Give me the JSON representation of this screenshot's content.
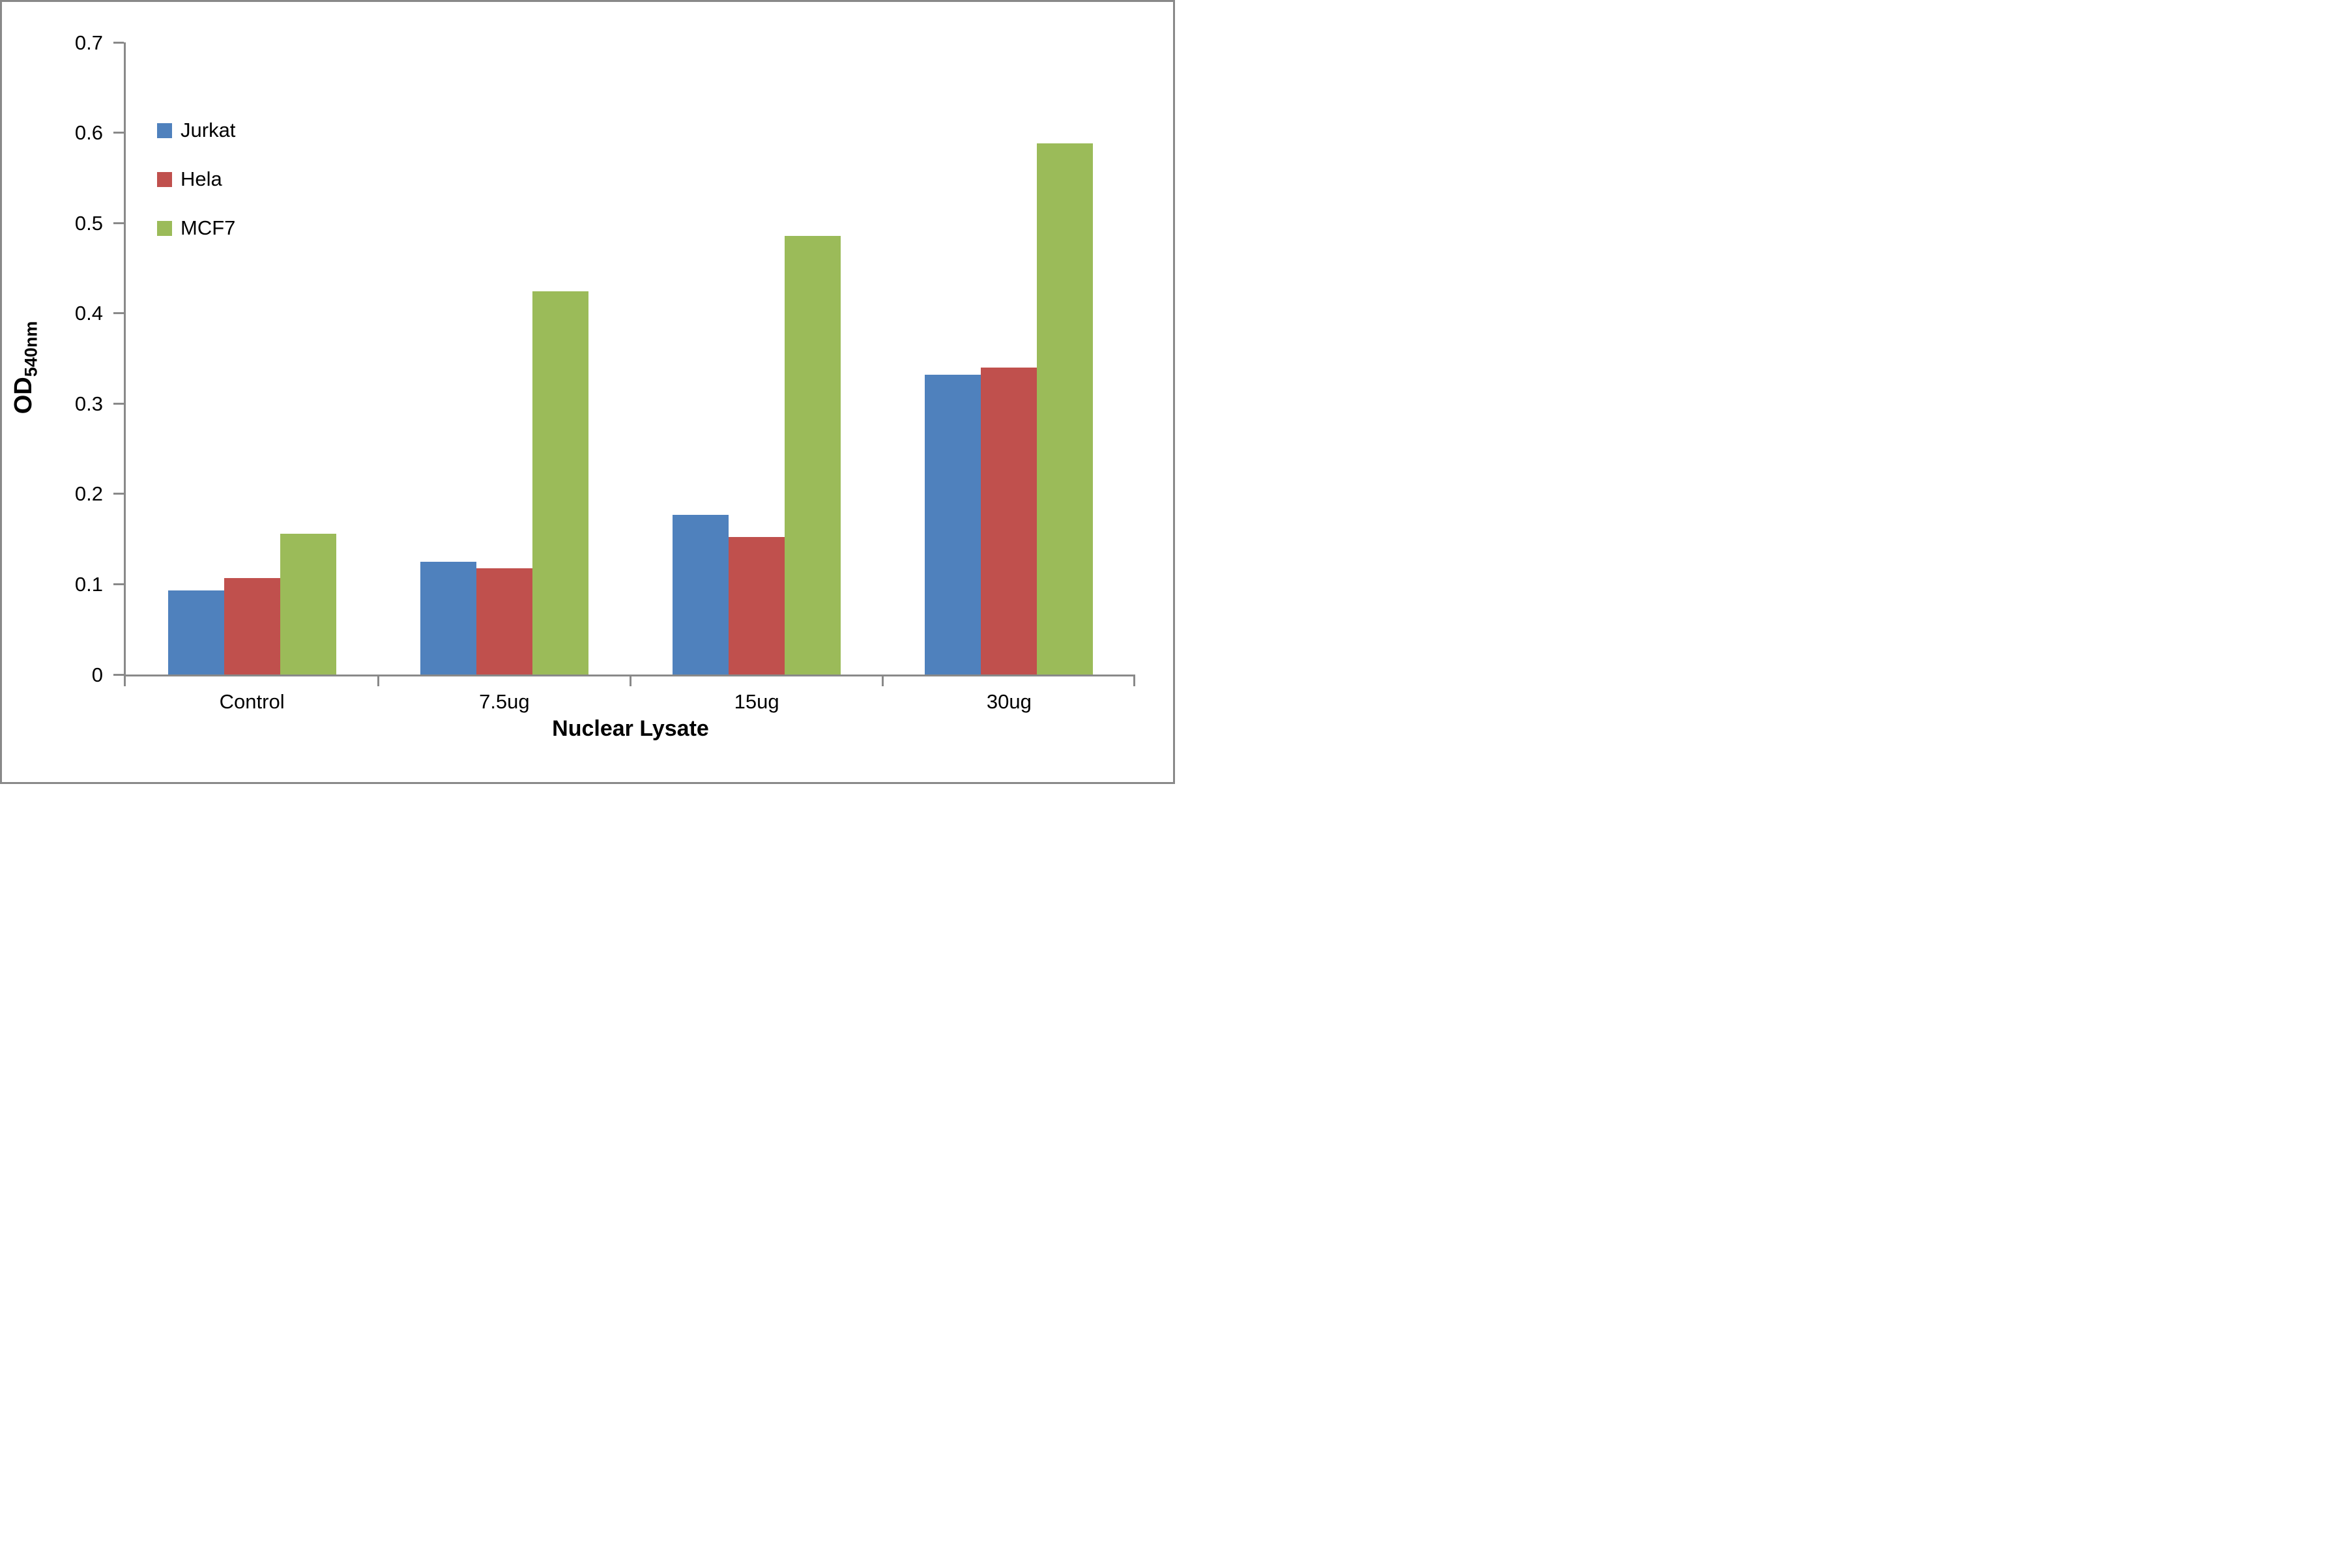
{
  "frame": {
    "background_color": "#FFFFFF",
    "border_color": "#898989",
    "axis_color": "#898989",
    "text_color": "#000000"
  },
  "chart_data": {
    "type": "bar",
    "title": "",
    "xlabel": "Nuclear Lysate",
    "ylabel": "OD",
    "ylabel_subscript": "540nm",
    "categories": [
      "Control",
      "7.5ug",
      "15ug",
      "30ug"
    ],
    "series": [
      {
        "name": "Jurkat",
        "color": "#4F81BD",
        "values": [
          0.093,
          0.125,
          0.177,
          0.332
        ]
      },
      {
        "name": "Hela",
        "color": "#C0504D",
        "values": [
          0.107,
          0.118,
          0.152,
          0.34
        ]
      },
      {
        "name": "MCF7",
        "color": "#9BBB59",
        "values": [
          0.156,
          0.424,
          0.486,
          0.588
        ]
      }
    ],
    "ylim": [
      0,
      0.7
    ],
    "ytick_step": 0.1,
    "ytick_labels": [
      "0",
      "0.1",
      "0.2",
      "0.3",
      "0.4",
      "0.5",
      "0.6",
      "0.7"
    ],
    "grid": false,
    "legend_position": "upper-left-inside"
  }
}
